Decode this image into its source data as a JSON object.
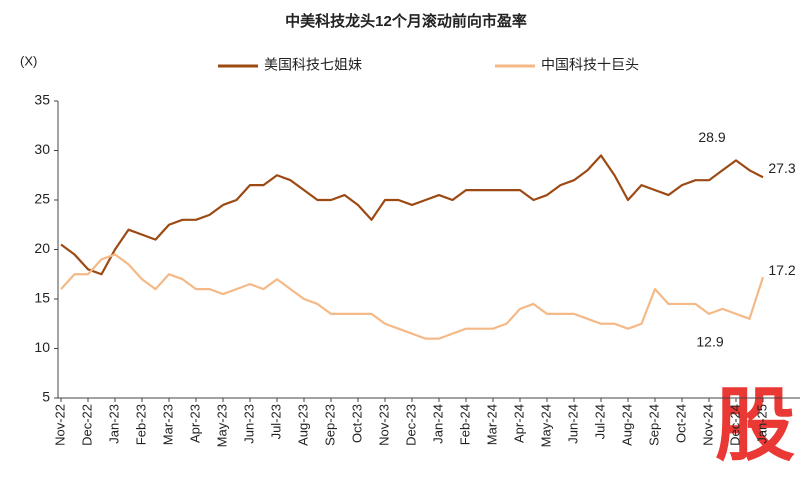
{
  "chart_data": {
    "type": "line",
    "title": "中美科技龙头12个月滚动前向市盈率",
    "y_unit": "(X)",
    "watermark": "股",
    "legend": "top",
    "categories": [
      "Nov-22",
      null,
      "Dec-22",
      null,
      "Jan-23",
      null,
      "Feb-23",
      null,
      "Mar-23",
      null,
      "Apr-23",
      null,
      "May-23",
      null,
      "Jun-23",
      null,
      "Jul-23",
      null,
      "Aug-23",
      null,
      "Sep-23",
      null,
      "Oct-23",
      null,
      "Nov-23",
      null,
      "Dec-23",
      null,
      "Jan-24",
      null,
      "Feb-24",
      null,
      "Mar-24",
      null,
      "Apr-24",
      null,
      "May-24",
      null,
      "Jun-24",
      null,
      "Jul-24",
      null,
      "Aug-24",
      null,
      "Sep-24",
      null,
      "Oct-24",
      null,
      "Nov-24",
      null,
      "Dec-24",
      null,
      "Jan-25"
    ],
    "series": [
      {
        "name": "美国科技七姐妹",
        "color": "#9c4a13",
        "values": [
          20.5,
          19.5,
          18,
          17.5,
          20,
          22,
          21.5,
          21,
          22.5,
          23,
          23,
          23.5,
          24.5,
          25,
          26.5,
          26.5,
          27.5,
          27,
          26,
          25,
          25,
          25.5,
          24.5,
          23,
          25,
          25,
          24.5,
          25,
          25.5,
          25,
          26,
          26,
          26,
          26,
          26,
          25,
          25.5,
          26.5,
          27,
          28,
          29.5,
          27.5,
          25,
          26.5,
          26,
          25.5,
          26.5,
          27,
          27,
          28,
          29,
          28,
          27.3
        ]
      },
      {
        "name": "中国科技十巨头",
        "color": "#f4b987",
        "values": [
          16,
          17.5,
          17.5,
          19,
          19.5,
          18.5,
          17,
          16,
          17.5,
          17,
          16,
          16,
          15.5,
          16,
          16.5,
          16,
          17,
          16,
          15,
          14.5,
          13.5,
          13.5,
          13.5,
          13.5,
          12.5,
          12,
          11.5,
          11,
          11,
          11.5,
          12,
          12,
          12,
          12.5,
          14,
          14.5,
          13.5,
          13.5,
          13.5,
          13,
          12.5,
          12.5,
          12,
          12.5,
          16,
          14.5,
          14.5,
          14.5,
          13.5,
          14,
          13.5,
          13,
          17.2
        ]
      }
    ],
    "annotations": [
      28.9,
      27.3,
      17.2,
      12.9
    ],
    "ylim": [
      5,
      35
    ],
    "yticks": [
      5,
      10,
      15,
      20,
      25,
      30,
      35
    ]
  }
}
